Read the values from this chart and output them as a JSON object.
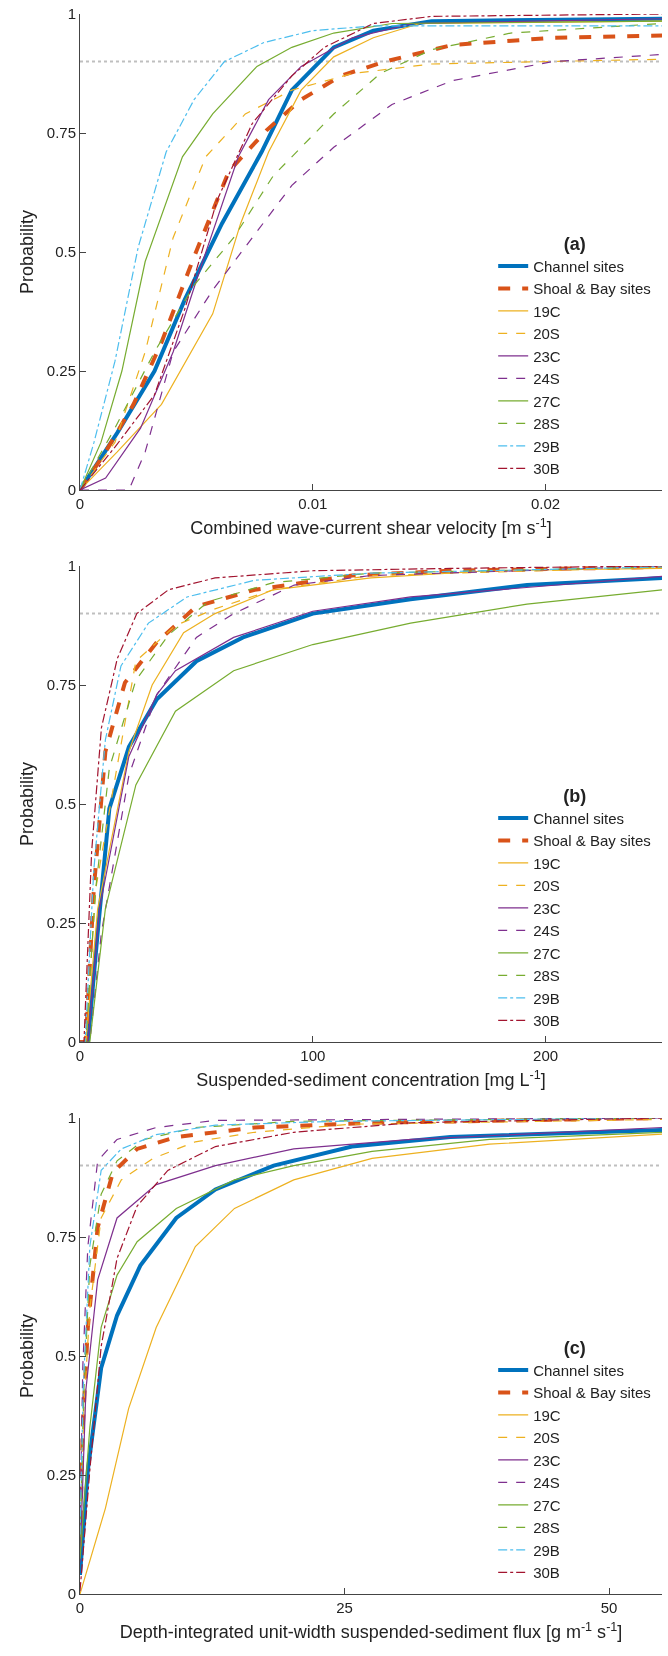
{
  "chart_data": [
    {
      "type": "line",
      "legend_title": "(a)",
      "xlabel": "Combined wave-current shear velocity [m s$^{-1}$]",
      "ylabel": "Probability",
      "xlim": [
        0,
        0.025
      ],
      "xticks": [
        0,
        0.01,
        0.02
      ],
      "ylim": [
        0,
        1
      ],
      "yticks": [
        0,
        0.25,
        0.5,
        0.75,
        1
      ],
      "legend": "bottom right",
      "grid": false,
      "ref_lines": [
        {
          "axis": "y",
          "value": 0.9,
          "color": "#bfbfbf",
          "line_style": "dotted"
        }
      ],
      "series": [
        {
          "name": "Channel sites",
          "color": "#0072bd",
          "line_style": "solid",
          "x": [
            0,
            0.0016,
            0.0032,
            0.0045,
            0.0061,
            0.0078,
            0.0091,
            0.0109,
            0.0126,
            0.0151,
            0.025
          ],
          "values": [
            0,
            0.12,
            0.25,
            0.4,
            0.56,
            0.71,
            0.84,
            0.93,
            0.965,
            0.985,
            0.99
          ]
        },
        {
          "name": "Shoal & Bay sites",
          "color": "#d95319",
          "line_style": "dashed",
          "x": [
            0,
            0.0011,
            0.0023,
            0.0035,
            0.0049,
            0.0064,
            0.008,
            0.0095,
            0.0112,
            0.0131,
            0.016,
            0.0203,
            0.025
          ],
          "values": [
            0,
            0.08,
            0.18,
            0.31,
            0.49,
            0.67,
            0.755,
            0.82,
            0.87,
            0.9,
            0.935,
            0.95,
            0.955
          ]
        },
        {
          "name": "19C",
          "color": "#edb120",
          "line_style": "solid",
          "x": [
            0,
            0.0016,
            0.0035,
            0.0057,
            0.0069,
            0.0081,
            0.0095,
            0.0109,
            0.0126,
            0.0146,
            0.025
          ],
          "values": [
            0,
            0.08,
            0.18,
            0.37,
            0.56,
            0.71,
            0.84,
            0.91,
            0.95,
            0.98,
            0.985
          ]
        },
        {
          "name": "20S",
          "color": "#edb120",
          "line_style": "dashed",
          "x": [
            0,
            0.0015,
            0.0028,
            0.004,
            0.0054,
            0.0071,
            0.0091,
            0.0117,
            0.0151,
            0.025
          ],
          "values": [
            0,
            0.1,
            0.29,
            0.53,
            0.7,
            0.79,
            0.84,
            0.875,
            0.895,
            0.905
          ]
        },
        {
          "name": "23C",
          "color": "#7e2f8e",
          "line_style": "solid",
          "x": [
            0,
            0.0011,
            0.0026,
            0.004,
            0.0052,
            0.0068,
            0.0081,
            0.0095,
            0.0117,
            0.0143,
            0.025
          ],
          "values": [
            0,
            0.025,
            0.13,
            0.29,
            0.47,
            0.7,
            0.82,
            0.89,
            0.95,
            0.98,
            0.99
          ]
        },
        {
          "name": "24S",
          "color": "#7e2f8e",
          "line_style": "dashed",
          "x": [
            0,
            0.0021,
            0.0028,
            0.004,
            0.0057,
            0.0074,
            0.0091,
            0.0109,
            0.0134,
            0.016,
            0.0203,
            0.025
          ],
          "values": [
            0,
            0,
            0.08,
            0.29,
            0.42,
            0.53,
            0.64,
            0.72,
            0.81,
            0.86,
            0.9,
            0.915
          ]
        },
        {
          "name": "27C",
          "color": "#77ac30",
          "line_style": "solid",
          "x": [
            0,
            0.0009,
            0.0018,
            0.0028,
            0.0044,
            0.0057,
            0.0076,
            0.0091,
            0.0109,
            0.0134,
            0.025
          ],
          "values": [
            0,
            0.1,
            0.25,
            0.48,
            0.7,
            0.79,
            0.89,
            0.93,
            0.96,
            0.98,
            0.985
          ]
        },
        {
          "name": "28S",
          "color": "#77ac30",
          "line_style": "dashed",
          "x": [
            0,
            0.0015,
            0.0032,
            0.0049,
            0.0066,
            0.0083,
            0.0109,
            0.0129,
            0.0151,
            0.0185,
            0.025
          ],
          "values": [
            0,
            0.13,
            0.29,
            0.43,
            0.53,
            0.66,
            0.79,
            0.875,
            0.925,
            0.96,
            0.98
          ]
        },
        {
          "name": "29B",
          "color": "#4dbeee",
          "line_style": "dashdot",
          "x": [
            0,
            0.0006,
            0.0015,
            0.0025,
            0.0037,
            0.0049,
            0.0062,
            0.0079,
            0.01,
            0.0126,
            0.025
          ],
          "values": [
            0,
            0.1,
            0.27,
            0.51,
            0.71,
            0.82,
            0.9,
            0.94,
            0.965,
            0.975,
            0.975
          ]
        },
        {
          "name": "30B",
          "color": "#a2142f",
          "line_style": "dashdot",
          "x": [
            0,
            0.0015,
            0.0032,
            0.0045,
            0.0059,
            0.0074,
            0.0091,
            0.0105,
            0.0126,
            0.0151,
            0.025
          ],
          "values": [
            0,
            0.09,
            0.2,
            0.38,
            0.61,
            0.77,
            0.87,
            0.93,
            0.98,
            0.995,
            1.0
          ]
        }
      ]
    },
    {
      "type": "line",
      "legend_title": "(b)",
      "xlabel": "Suspended-sediment concentration [mg L$^{-1}$]",
      "ylabel": "Probability",
      "xlim": [
        0,
        250
      ],
      "xticks": [
        0,
        100,
        200
      ],
      "ylim": [
        0,
        1
      ],
      "yticks": [
        0,
        0.25,
        0.5,
        0.75,
        1
      ],
      "legend": "bottom right",
      "grid": false,
      "ref_lines": [
        {
          "axis": "y",
          "value": 0.9,
          "color": "#bfbfbf",
          "line_style": "dotted"
        }
      ],
      "series": [
        {
          "name": "Channel sites",
          "color": "#0072bd",
          "line_style": "solid",
          "x": [
            0,
            3.4,
            7.6,
            12.6,
            21,
            33,
            50,
            70,
            100,
            142,
            192,
            250
          ],
          "values": [
            0,
            0,
            0.23,
            0.49,
            0.62,
            0.72,
            0.8,
            0.85,
            0.9,
            0.93,
            0.96,
            0.975
          ]
        },
        {
          "name": "Shoal & Bay sites",
          "color": "#d95319",
          "line_style": "dashed",
          "x": [
            0,
            2.5,
            5.9,
            10.9,
            19.3,
            33,
            50,
            75,
            117,
            159,
            250
          ],
          "values": [
            0,
            0,
            0.32,
            0.61,
            0.755,
            0.84,
            0.915,
            0.95,
            0.98,
            0.99,
            0.998
          ]
        },
        {
          "name": "19C",
          "color": "#edb120",
          "line_style": "solid",
          "x": [
            0,
            2.5,
            7.6,
            21,
            31,
            44.5,
            58,
            83,
            125,
            176,
            250
          ],
          "values": [
            0,
            0,
            0.28,
            0.61,
            0.75,
            0.86,
            0.9,
            0.95,
            0.975,
            0.99,
            0.995
          ]
        },
        {
          "name": "20S",
          "color": "#edb120",
          "line_style": "dashed",
          "x": [
            0,
            2.5,
            6.7,
            16,
            24,
            41,
            58,
            83,
            125,
            250
          ],
          "values": [
            0,
            0,
            0.32,
            0.58,
            0.8,
            0.875,
            0.91,
            0.95,
            0.98,
            0.997
          ]
        },
        {
          "name": "23C",
          "color": "#7e2f8e",
          "line_style": "solid",
          "x": [
            0,
            3.4,
            8.4,
            21,
            33,
            41,
            66,
            100,
            142,
            250
          ],
          "values": [
            0,
            0,
            0.28,
            0.6,
            0.73,
            0.78,
            0.85,
            0.905,
            0.935,
            0.978
          ]
        },
        {
          "name": "24S",
          "color": "#7e2f8e",
          "line_style": "dashed",
          "x": [
            0,
            4.2,
            9.2,
            21,
            33,
            50,
            66,
            92,
            125,
            250
          ],
          "values": [
            0,
            0,
            0.23,
            0.56,
            0.73,
            0.85,
            0.9,
            0.96,
            0.98,
            1.0
          ]
        },
        {
          "name": "27C",
          "color": "#77ac30",
          "line_style": "solid",
          "x": [
            0,
            4.2,
            10.9,
            24,
            41,
            66,
            100,
            142,
            192,
            250
          ],
          "values": [
            0,
            0,
            0.28,
            0.54,
            0.695,
            0.78,
            0.835,
            0.88,
            0.92,
            0.95
          ]
        },
        {
          "name": "28S",
          "color": "#77ac30",
          "line_style": "dashed",
          "x": [
            0,
            2.5,
            6.7,
            12.6,
            24,
            38,
            55,
            83,
            125,
            250
          ],
          "values": [
            0,
            0,
            0.32,
            0.575,
            0.76,
            0.855,
            0.925,
            0.965,
            0.985,
            0.998
          ]
        },
        {
          "name": "29B",
          "color": "#4dbeee",
          "line_style": "dashdot",
          "x": [
            0,
            2.2,
            5.9,
            10.9,
            17.6,
            29.4,
            46,
            75,
            125,
            250
          ],
          "values": [
            0,
            0,
            0.36,
            0.635,
            0.79,
            0.88,
            0.935,
            0.97,
            0.985,
            0.998
          ]
        },
        {
          "name": "30B",
          "color": "#a2142f",
          "line_style": "dashdot",
          "x": [
            0,
            1.7,
            5,
            9.2,
            16,
            24.4,
            38,
            58,
            100,
            159,
            250
          ],
          "values": [
            0,
            0,
            0.4,
            0.66,
            0.805,
            0.9,
            0.95,
            0.975,
            0.99,
            0.995,
            1.0
          ]
        }
      ]
    },
    {
      "type": "line",
      "legend_title": "(c)",
      "xlabel": "Depth-integrated unit-width suspended-sediment flux [g m$^{-1}$ s$^{-1}$]",
      "ylabel": "Probability",
      "xlim": [
        0,
        55
      ],
      "xticks": [
        0,
        25,
        50
      ],
      "ylim": [
        0,
        1
      ],
      "yticks": [
        0,
        0.25,
        0.5,
        0.75,
        1
      ],
      "legend": "bottom right",
      "grid": false,
      "ref_lines": [
        {
          "axis": "y",
          "value": 0.9,
          "color": "#bfbfbf",
          "line_style": "dotted"
        }
      ],
      "series": [
        {
          "name": "Channel sites",
          "color": "#0072bd",
          "line_style": "solid",
          "x": [
            0,
            0.74,
            2.0,
            3.5,
            5.7,
            9.1,
            12.8,
            18.3,
            25.7,
            35,
            55
          ],
          "values": [
            0.04,
            0.26,
            0.475,
            0.585,
            0.69,
            0.79,
            0.85,
            0.9,
            0.94,
            0.96,
            0.975
          ]
        },
        {
          "name": "Shoal & Bay sites",
          "color": "#d95319",
          "line_style": "dashed",
          "x": [
            0,
            0.26,
            0.74,
            1.67,
            3.1,
            5.4,
            9.1,
            16.5,
            27.6,
            55
          ],
          "values": [
            0.1,
            0.35,
            0.56,
            0.77,
            0.885,
            0.935,
            0.96,
            0.98,
            0.99,
            1.0
          ]
        },
        {
          "name": "19C",
          "color": "#edb120",
          "line_style": "solid",
          "x": [
            0,
            2.4,
            4.6,
            7.2,
            10.9,
            14.6,
            20.2,
            27.6,
            38.7,
            55
          ],
          "values": [
            0,
            0.18,
            0.39,
            0.56,
            0.73,
            0.81,
            0.87,
            0.915,
            0.945,
            0.966
          ]
        },
        {
          "name": "20S",
          "color": "#edb120",
          "line_style": "dashed",
          "x": [
            0,
            0.37,
            0.93,
            2.0,
            3.9,
            6.9,
            10.9,
            16.5,
            25.7,
            55
          ],
          "values": [
            0.11,
            0.39,
            0.6,
            0.79,
            0.87,
            0.915,
            0.95,
            0.97,
            0.987,
            0.997
          ]
        },
        {
          "name": "23C",
          "color": "#7e2f8e",
          "line_style": "solid",
          "x": [
            0,
            0.56,
            1.67,
            3.5,
            7.2,
            12.8,
            20.2,
            31.3,
            55
          ],
          "values": [
            0.066,
            0.43,
            0.66,
            0.79,
            0.86,
            0.9,
            0.935,
            0.955,
            0.98
          ]
        },
        {
          "name": "24S",
          "color": "#7e2f8e",
          "line_style": "dashed",
          "x": [
            0,
            0.26,
            0.74,
            1.67,
            3.5,
            7.2,
            12.8,
            55
          ],
          "values": [
            0.13,
            0.475,
            0.73,
            0.91,
            0.955,
            0.98,
            0.995,
            1.0
          ]
        },
        {
          "name": "27C",
          "color": "#77ac30",
          "line_style": "solid",
          "x": [
            0,
            0.93,
            2.0,
            3.5,
            5.4,
            9.1,
            14.6,
            20.2,
            27.6,
            38.7,
            55
          ],
          "values": [
            0.074,
            0.35,
            0.56,
            0.67,
            0.74,
            0.81,
            0.87,
            0.9,
            0.93,
            0.955,
            0.97
          ]
        },
        {
          "name": "28S",
          "color": "#77ac30",
          "line_style": "dashed",
          "x": [
            0,
            0.37,
            0.93,
            2.0,
            3.5,
            6.1,
            10.9,
            20.2,
            55
          ],
          "values": [
            0.12,
            0.43,
            0.69,
            0.84,
            0.91,
            0.955,
            0.98,
            0.993,
            1.0
          ]
        },
        {
          "name": "29B",
          "color": "#4dbeee",
          "line_style": "dashdot",
          "x": [
            0,
            0.3,
            0.93,
            2.0,
            3.9,
            7.2,
            12.8,
            23.9,
            55
          ],
          "values": [
            0.125,
            0.43,
            0.73,
            0.89,
            0.935,
            0.965,
            0.985,
            0.993,
            1.0
          ]
        },
        {
          "name": "30B",
          "color": "#a2142f",
          "line_style": "dashdot",
          "x": [
            0,
            0.93,
            2.0,
            3.5,
            5.4,
            8.3,
            12.8,
            20.2,
            31.3,
            55
          ],
          "values": [
            0.006,
            0.26,
            0.52,
            0.705,
            0.815,
            0.89,
            0.94,
            0.97,
            0.99,
            1.0
          ]
        }
      ]
    }
  ]
}
